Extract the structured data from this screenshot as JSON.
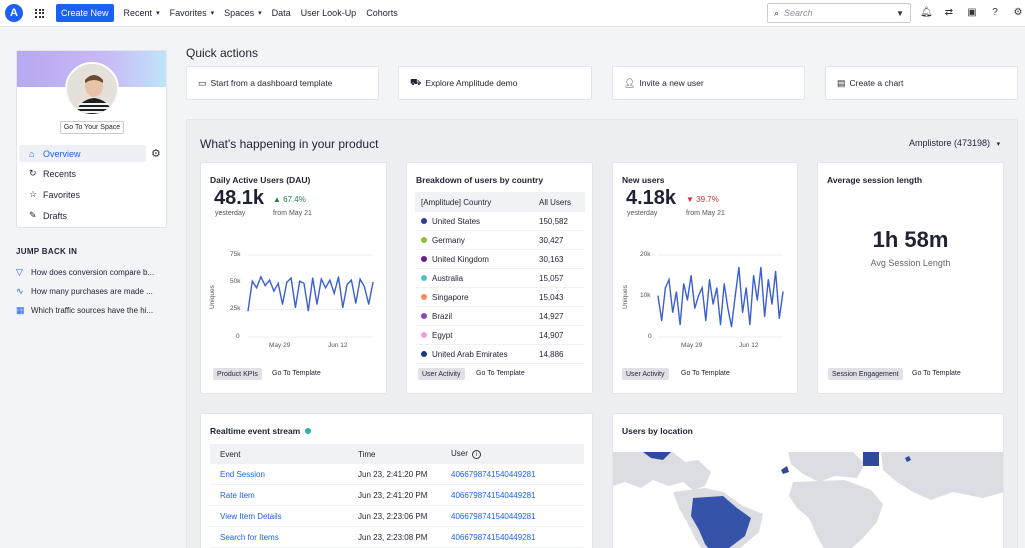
{
  "nav": {
    "logo": "A",
    "create_new": "Create New",
    "items": [
      "Recent",
      "Favorites",
      "Spaces",
      "Data",
      "User Look-Up",
      "Cohorts"
    ],
    "search_placeholder": "Search"
  },
  "sidebar": {
    "go_to_space": "Go To Your Space",
    "items": [
      {
        "label": "Overview",
        "icon": "home-icon"
      },
      {
        "label": "Recents",
        "icon": "history-icon"
      },
      {
        "label": "Favorites",
        "icon": "star-icon"
      },
      {
        "label": "Drafts",
        "icon": "pencil-icon"
      }
    ],
    "jump_back_title": "JUMP BACK IN",
    "jump_back": [
      {
        "label": "How does conversion compare b...",
        "icon": "funnel-icon"
      },
      {
        "label": "How many purchases are made ...",
        "icon": "line-chart-icon"
      },
      {
        "label": "Which traffic sources have the hi...",
        "icon": "table-icon"
      }
    ]
  },
  "quick_actions": {
    "title": "Quick actions",
    "items": [
      {
        "label": "Start from a dashboard template",
        "icon": "template-icon"
      },
      {
        "label": "Explore Amplitude demo",
        "icon": "truck-icon"
      },
      {
        "label": "Invite a new user",
        "icon": "add-user-icon"
      },
      {
        "label": "Create a chart",
        "icon": "chart-icon"
      }
    ]
  },
  "main": {
    "title": "What's happening in your product",
    "project": "Amplistore (473198)"
  },
  "dau": {
    "title": "Daily Active Users (DAU)",
    "value": "48.1k",
    "delta": "▲ 67.4%",
    "value_sub": "yesterday",
    "delta_sub": "from May 21",
    "ylabel": "Uniques",
    "yticks": [
      "75k",
      "50k",
      "25k",
      "0"
    ],
    "xticks": [
      "May 29",
      "Jun 12"
    ],
    "tag": "Product KPIs",
    "go_template": "Go To Template"
  },
  "country": {
    "title": "Breakdown of users by country",
    "col1": "[Amplitude] Country",
    "col2": "All Users",
    "rows": [
      {
        "name": "United States",
        "value": "150,582",
        "color": "#2c3e9e"
      },
      {
        "name": "Germany",
        "value": "30,427",
        "color": "#8fbf3a"
      },
      {
        "name": "United Kingdom",
        "value": "30,163",
        "color": "#6a1f8a"
      },
      {
        "name": "Australia",
        "value": "15,057",
        "color": "#4fc3c9"
      },
      {
        "name": "Singapore",
        "value": "15,043",
        "color": "#f08a6a"
      },
      {
        "name": "Brazil",
        "value": "14,927",
        "color": "#8b4ab8"
      },
      {
        "name": "Egypt",
        "value": "14,907",
        "color": "#f29ad8"
      },
      {
        "name": "United Arab Emirates",
        "value": "14,886",
        "color": "#1f3a7a"
      }
    ],
    "tag": "User Activity",
    "go_template": "Go To Template"
  },
  "new_users": {
    "title": "New users",
    "value": "4.18k",
    "delta": "▼ 39.7%",
    "value_sub": "yesterday",
    "delta_sub": "from May 21",
    "ylabel": "Uniques",
    "yticks": [
      "20k",
      "10k",
      "0"
    ],
    "xticks": [
      "May 29",
      "Jun 12"
    ],
    "tag": "User Activity",
    "go_template": "Go To Template"
  },
  "session": {
    "title": "Average session length",
    "value": "1h 58m",
    "label": "Avg Session Length",
    "tag": "Session Engagement",
    "go_template": "Go To Template"
  },
  "realtime": {
    "title": "Realtime event stream",
    "col_event": "Event",
    "col_time": "Time",
    "col_user": "User",
    "rows": [
      {
        "event": "End Session",
        "time": "Jun 23, 2:41:20 PM",
        "user": "4066798741540449281"
      },
      {
        "event": "Rate Item",
        "time": "Jun 23, 2:41:20 PM",
        "user": "4066798741540449281"
      },
      {
        "event": "View Item Details",
        "time": "Jun 23, 2:23:06 PM",
        "user": "4066798741540449281"
      },
      {
        "event": "Search for Items",
        "time": "Jun 23, 2:23:08 PM",
        "user": "4066798741540449281"
      }
    ]
  },
  "location": {
    "title": "Users by location"
  },
  "chart_data": [
    {
      "type": "line",
      "ylabel": "Uniques",
      "ylim": [
        0,
        75000
      ],
      "yticks": [
        "75k",
        "50k",
        "25k",
        "0"
      ],
      "xticks": [
        "May 29",
        "Jun 12"
      ],
      "values": [
        24000,
        51000,
        45000,
        55000,
        47000,
        52000,
        42000,
        49000,
        30000,
        50000,
        54000,
        27000,
        51000,
        49000,
        24000,
        54000,
        30000,
        53000,
        45000,
        52000,
        40000,
        55000,
        27000,
        48000,
        52000,
        31000,
        53000,
        46000,
        30000,
        50000
      ]
    },
    {
      "type": "line",
      "ylabel": "Uniques",
      "ylim": [
        0,
        20000
      ],
      "yticks": [
        "20k",
        "10k",
        "0"
      ],
      "xticks": [
        "May 29",
        "Jun 12"
      ],
      "values": [
        10000,
        4000,
        12000,
        14000,
        6000,
        11000,
        3000,
        13000,
        9000,
        15000,
        7000,
        10000,
        12000,
        4000,
        14000,
        8000,
        12000,
        3000,
        13000,
        7000,
        2500,
        10000,
        17000,
        6000,
        12000,
        3000,
        15000,
        9000,
        17000,
        5000,
        14000,
        8000,
        16000,
        4500,
        11000
      ]
    }
  ]
}
